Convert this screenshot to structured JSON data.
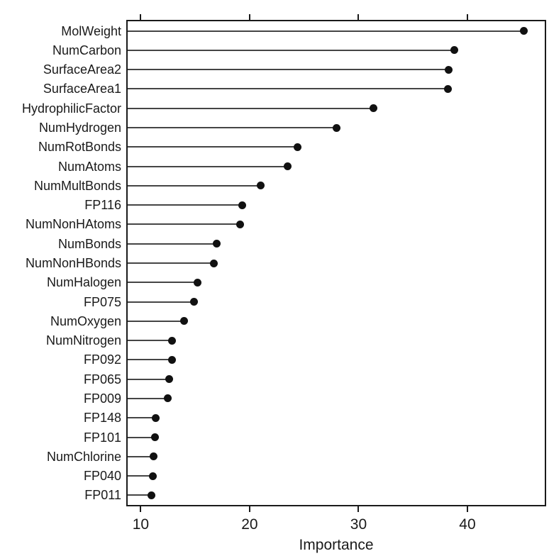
{
  "chart_data": {
    "type": "scatter",
    "variant": "lollipop-dotplot",
    "title": "",
    "xlabel": "Importance",
    "ylabel": "",
    "orientation": "horizontal",
    "grid": "off",
    "legend": "none",
    "xlim": [
      8.8,
      47.1
    ],
    "x_ticks": [
      10,
      20,
      30,
      40
    ],
    "x_tick_labels": [
      "10",
      "20",
      "30",
      "40"
    ],
    "top_axis_ticks_labeled": false,
    "categories": [
      "MolWeight",
      "NumCarbon",
      "SurfaceArea2",
      "SurfaceArea1",
      "HydrophilicFactor",
      "NumHydrogen",
      "NumRotBonds",
      "NumAtoms",
      "NumMultBonds",
      "FP116",
      "NumNonHAtoms",
      "NumBonds",
      "NumNonHBonds",
      "NumHalogen",
      "FP075",
      "NumOxygen",
      "NumNitrogen",
      "FP092",
      "FP065",
      "FP009",
      "FP148",
      "FP101",
      "NumChlorine",
      "FP040",
      "FP011"
    ],
    "values": [
      45.2,
      38.8,
      38.3,
      38.2,
      31.4,
      28.0,
      24.4,
      23.5,
      21.0,
      19.3,
      19.1,
      17.0,
      16.7,
      15.2,
      14.9,
      14.0,
      12.9,
      12.9,
      12.6,
      12.5,
      11.4,
      11.3,
      11.2,
      11.1,
      11.0
    ],
    "colors": {
      "dot": "#111111",
      "stem_line": "#454545",
      "axis": "#1a1a1a",
      "background": "#ffffff"
    }
  }
}
